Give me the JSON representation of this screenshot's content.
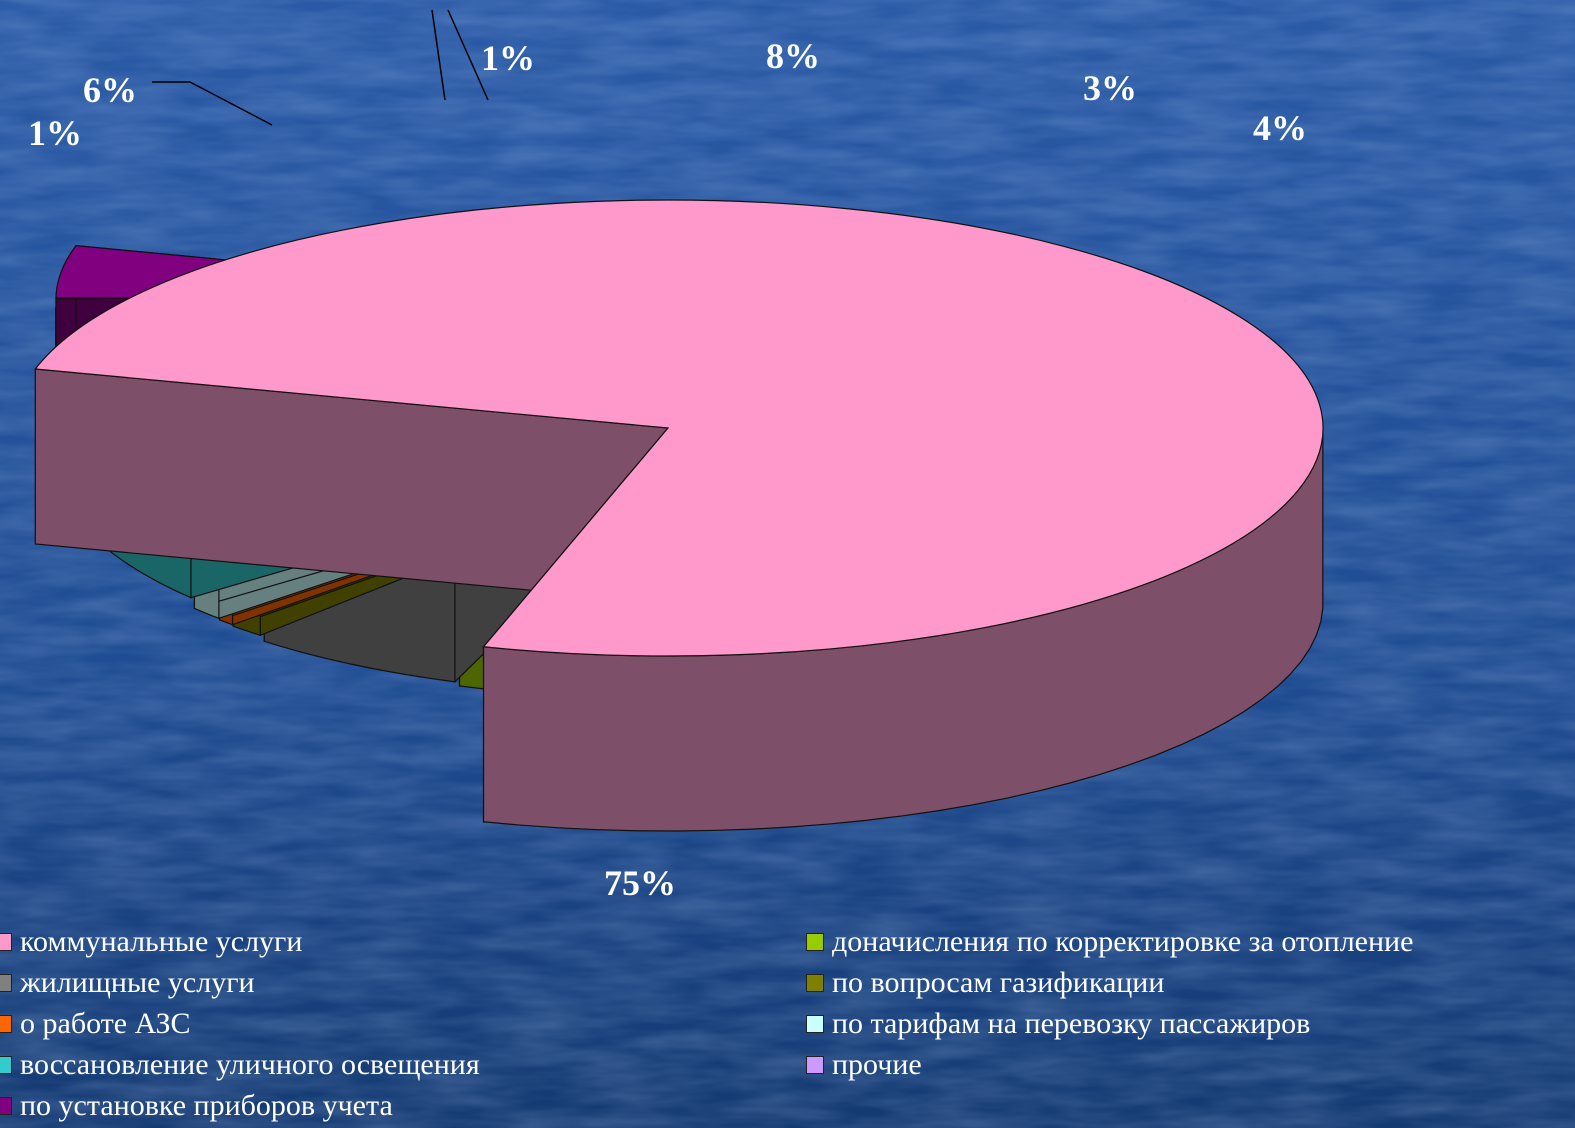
{
  "chart_data": {
    "type": "pie",
    "three_d": true,
    "title": "",
    "slices": [
      {
        "name": "коммунальные услуги",
        "value": 75,
        "label": "75%",
        "color": "#ff99cc",
        "side": "#7e4f68",
        "exploded": false
      },
      {
        "name": "донач исления по корректировке за отопление",
        "value": 1,
        "label": "1%",
        "color": "#99cc00",
        "side": "#4d6600",
        "exploded": true
      },
      {
        "name": "жилищные услуги",
        "value": 6,
        "label": "6%",
        "color": "#808080",
        "side": "#404040",
        "exploded": true
      },
      {
        "name": "по вопросам газификации",
        "value": 1,
        "label": "",
        "color": "#808000",
        "side": "#404000",
        "exploded": true
      },
      {
        "name": "о работе АЗС",
        "value": 0.5,
        "label": "",
        "color": "#ff6600",
        "side": "#803300",
        "exploded": true
      },
      {
        "name": "по тарифам на перевозку пассажиров",
        "value": 1,
        "label": "1%",
        "color": "#ccffff",
        "side": "#668080",
        "exploded": true
      },
      {
        "name": "воссановление уличного освещения",
        "value": 8,
        "label": "8%",
        "color": "#33cccc",
        "side": "#1a6666",
        "exploded": true
      },
      {
        "name": "прочие",
        "value": 3,
        "label": "3%",
        "color": "#cc99ff",
        "side": "#664d80",
        "exploded": true
      },
      {
        "name": "по установке приборов учета",
        "value": 4,
        "label": "4%",
        "color": "#800080",
        "side": "#400040",
        "exploded": true
      }
    ],
    "legend_position": "bottom"
  },
  "legend": {
    "left": [
      {
        "label": "коммунальные услуги",
        "color": "#ff99cc"
      },
      {
        "label": "жилищные услуги",
        "color": "#808080"
      },
      {
        "label": "о работе АЗС",
        "color": "#ff6600"
      },
      {
        "label": "воссановление уличного освещения",
        "color": "#33cccc"
      },
      {
        "label": "по установке приборов учета",
        "color": "#800080"
      }
    ],
    "right": [
      {
        "label": "доначисления по корректировке за отопление",
        "color": "#99cc00"
      },
      {
        "label": "по вопросам газификации",
        "color": "#808000"
      },
      {
        "label": "по тарифам на перевозку пассажиров",
        "color": "#ccffff"
      },
      {
        "label": "прочие",
        "color": "#cc99ff"
      }
    ]
  }
}
